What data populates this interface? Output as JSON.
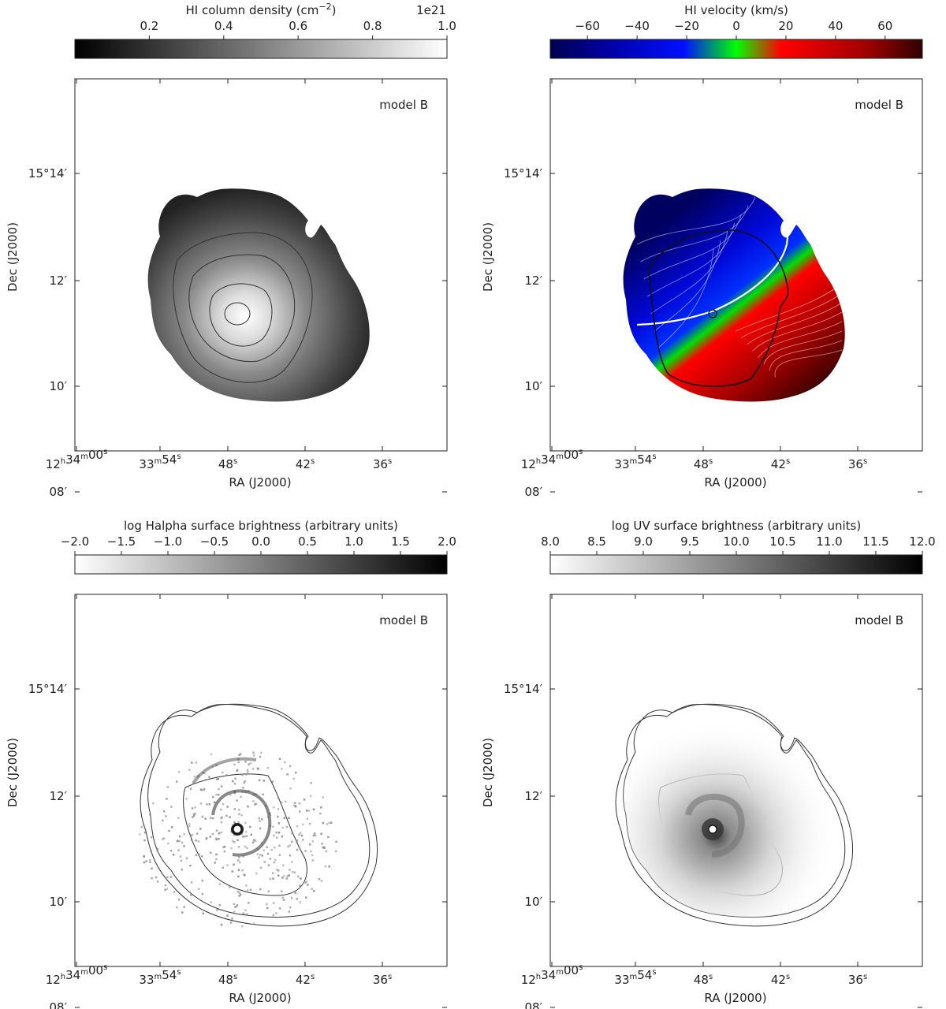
{
  "chart_data": [
    {
      "type": "heatmap",
      "panel": "top-left",
      "quantity": "HI column density",
      "colorbar": {
        "label": "HI column density (cm",
        "label_exponent": "−2",
        "label_tail": ")",
        "offset_text": "1e21",
        "range": [
          0.0,
          1.0
        ],
        "ticks": [
          0.2,
          0.4,
          0.6,
          0.8,
          1.0
        ],
        "tick_labels": [
          "0.2",
          "0.4",
          "0.6",
          "0.8",
          "1.0"
        ],
        "colormap": "gray",
        "colors": [
          "#000000",
          "#ffffff"
        ]
      },
      "annotation": "model B",
      "xlabel": "RA (J2000)",
      "ylabel": "Dec (J2000)",
      "xticks": [
        {
          "h": "12",
          "hs": "h",
          "m": "34",
          "ms": "m",
          "s": "00",
          "ss": "s"
        },
        {
          "m": "33",
          "ms": "m",
          "s": "54",
          "ss": "s"
        },
        {
          "s": "48",
          "ss": "s"
        },
        {
          "s": "42",
          "ss": "s"
        },
        {
          "s": "36",
          "ss": "s"
        }
      ],
      "yticks": [
        "15°14′",
        "12′",
        "10′",
        "08′"
      ]
    },
    {
      "type": "heatmap",
      "panel": "top-right",
      "quantity": "HI velocity",
      "colorbar": {
        "label": "HI velocity (km/s)",
        "range": [
          -75,
          75
        ],
        "ticks": [
          -60,
          -40,
          -20,
          0,
          20,
          40,
          60
        ],
        "tick_labels": [
          "−60",
          "−40",
          "−20",
          "0",
          "20",
          "40",
          "60"
        ],
        "colormap": "blue-green-red",
        "colors": [
          "#000050",
          "#0000a0",
          "#0010ff",
          "#00ff00",
          "#ff0000",
          "#a00000",
          "#300000"
        ]
      },
      "annotation": "model B",
      "xlabel": "RA (J2000)",
      "ylabel": "Dec (J2000)",
      "xticks": [
        {
          "h": "12",
          "hs": "h",
          "m": "34",
          "ms": "m",
          "s": "00",
          "ss": "s"
        },
        {
          "m": "33",
          "ms": "m",
          "s": "54",
          "ss": "s"
        },
        {
          "s": "48",
          "ss": "s"
        },
        {
          "s": "42",
          "ss": "s"
        },
        {
          "s": "36",
          "ss": "s"
        }
      ],
      "yticks": [
        "15°14′",
        "12′",
        "10′",
        "08′"
      ]
    },
    {
      "type": "heatmap",
      "panel": "bottom-left",
      "quantity": "log Halpha surface brightness",
      "colorbar": {
        "label": "log Halpha surface brightness (arbitrary units)",
        "range": [
          -2.0,
          2.0
        ],
        "ticks": [
          -2.0,
          -1.5,
          -1.0,
          -0.5,
          0.0,
          0.5,
          1.0,
          1.5,
          2.0
        ],
        "tick_labels": [
          "−2.0",
          "−1.5",
          "−1.0",
          "−0.5",
          "0.0",
          "0.5",
          "1.0",
          "1.5",
          "2.0"
        ],
        "colormap": "gray_r",
        "colors": [
          "#ffffff",
          "#000000"
        ]
      },
      "annotation": "model B",
      "xlabel": "RA (J2000)",
      "ylabel": "Dec (J2000)",
      "xticks": [
        {
          "h": "12",
          "hs": "h",
          "m": "34",
          "ms": "m",
          "s": "00",
          "ss": "s"
        },
        {
          "m": "33",
          "ms": "m",
          "s": "54",
          "ss": "s"
        },
        {
          "s": "48",
          "ss": "s"
        },
        {
          "s": "42",
          "ss": "s"
        },
        {
          "s": "36",
          "ss": "s"
        }
      ],
      "yticks": [
        "15°14′",
        "12′",
        "10′",
        "08′"
      ]
    },
    {
      "type": "heatmap",
      "panel": "bottom-right",
      "quantity": "log UV surface brightness",
      "colorbar": {
        "label": "log UV surface brightness (arbitrary units)",
        "range": [
          8.0,
          12.0
        ],
        "ticks": [
          8.0,
          8.5,
          9.0,
          9.5,
          10.0,
          10.5,
          11.0,
          11.5,
          12.0
        ],
        "tick_labels": [
          "8.0",
          "8.5",
          "9.0",
          "9.5",
          "10.0",
          "10.5",
          "11.0",
          "11.5",
          "12.0"
        ],
        "colormap": "gray_r",
        "colors": [
          "#ffffff",
          "#000000"
        ]
      },
      "annotation": "model B",
      "xlabel": "RA (J2000)",
      "ylabel": "Dec (J2000)",
      "xticks": [
        {
          "h": "12",
          "hs": "h",
          "m": "34",
          "ms": "m",
          "s": "00",
          "ss": "s"
        },
        {
          "m": "33",
          "ms": "m",
          "s": "54",
          "ss": "s"
        },
        {
          "s": "48",
          "ss": "s"
        },
        {
          "s": "42",
          "ss": "s"
        },
        {
          "s": "36",
          "ss": "s"
        }
      ],
      "yticks": [
        "15°14′",
        "12′",
        "10′",
        "08′"
      ]
    }
  ]
}
